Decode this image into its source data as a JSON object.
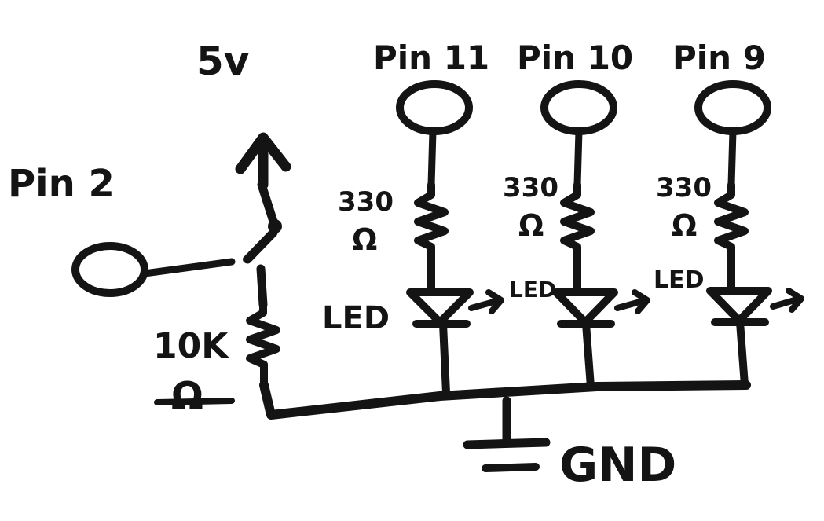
{
  "schematic": {
    "supply_label": "5v",
    "input_pin_label": "Pin 2",
    "ground_label": "GND",
    "pullup_resistor": {
      "value_label": "10K",
      "unit_label": "Ω"
    },
    "branches": [
      {
        "pin_label": "Pin 11",
        "resistor_value_label": "330",
        "resistor_unit_label": "Ω",
        "led_label": "LED"
      },
      {
        "pin_label": "Pin 10",
        "resistor_value_label": "330",
        "resistor_unit_label": "Ω",
        "led_label": "LED"
      },
      {
        "pin_label": "Pin 9",
        "resistor_value_label": "330",
        "resistor_unit_label": "Ω",
        "led_label": "LED"
      }
    ],
    "colors": {
      "ink": "#141414",
      "background": "#ffffff"
    }
  }
}
